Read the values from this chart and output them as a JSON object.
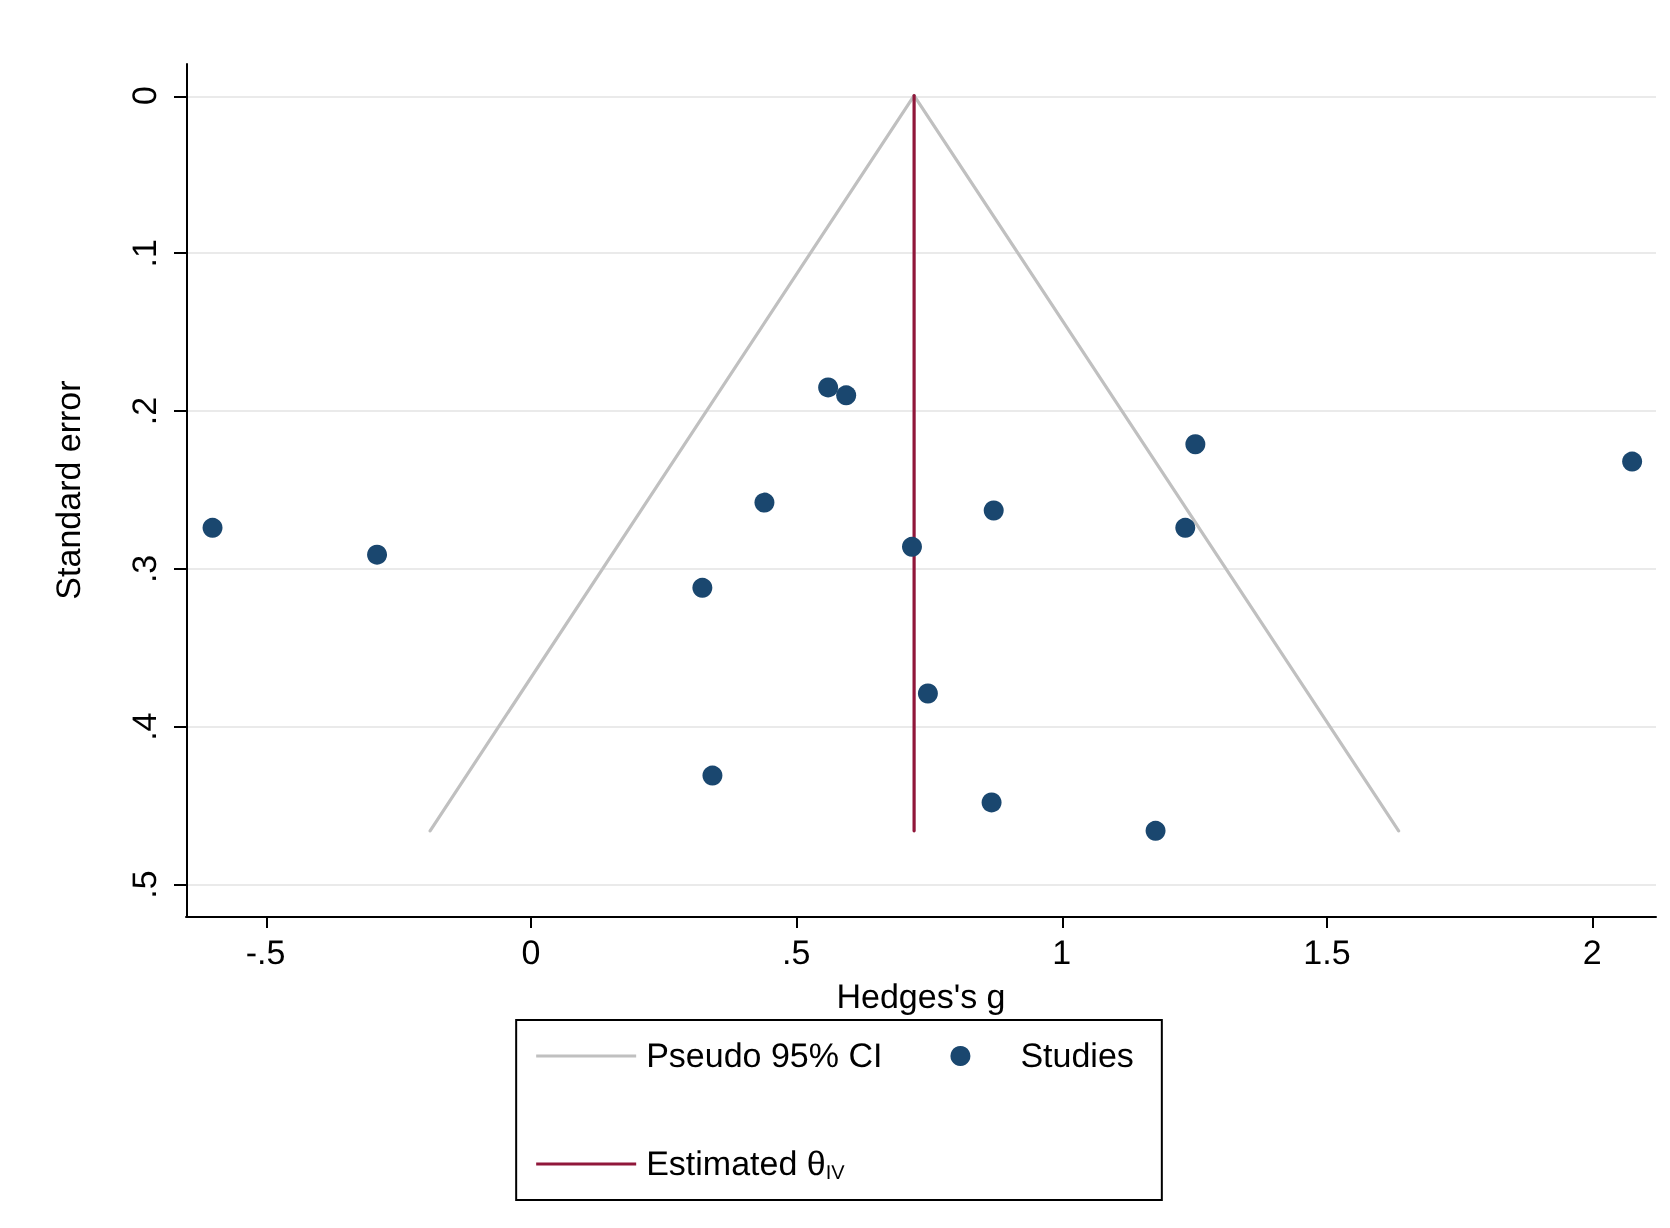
{
  "chart_data": {
    "type": "scatter",
    "xlabel": "Hedges's g",
    "ylabel": "Standard error",
    "xlim": [
      -0.65,
      2.12
    ],
    "xticks": [
      {
        "value": -0.5,
        "label": "-.5"
      },
      0,
      {
        "value": 0.5,
        "label": ".5"
      },
      1,
      1.5,
      2
    ],
    "ylim": [
      0.52,
      -0.02
    ],
    "yticks": [
      0,
      {
        "value": 0.1,
        "label": ".1"
      },
      {
        "value": 0.2,
        "label": ".2"
      },
      {
        "value": 0.3,
        "label": ".3"
      },
      {
        "value": 0.4,
        "label": ".4"
      },
      {
        "value": 0.5,
        "label": ".5"
      }
    ],
    "grid": "y",
    "legend": "bottom",
    "series": [
      {
        "name": "Pseudo 95% CI",
        "type": "line",
        "color": "#c0c0c0",
        "marker": "none",
        "x": [
          -0.19,
          0.722,
          1.635
        ],
        "values": [
          0.466,
          0,
          0.466
        ]
      },
      {
        "name": "Studies",
        "color": "#1a476f",
        "marker": "circle",
        "x": [
          -0.6,
          -0.29,
          0.323,
          0.342,
          0.44,
          0.56,
          0.594,
          0.718,
          0.748,
          0.872,
          0.868,
          1.177,
          1.233,
          1.252,
          2.075
        ],
        "values": [
          0.274,
          0.291,
          0.312,
          0.431,
          0.258,
          0.185,
          0.19,
          0.286,
          0.379,
          0.263,
          0.448,
          0.466,
          0.274,
          0.221,
          0.232
        ]
      },
      {
        "name": "Estimated θ$_{IV}$",
        "type": "line",
        "color": "#90173a",
        "marker": "none",
        "x": [
          0.722,
          0.722
        ],
        "values": [
          0,
          0.466
        ]
      }
    ]
  }
}
